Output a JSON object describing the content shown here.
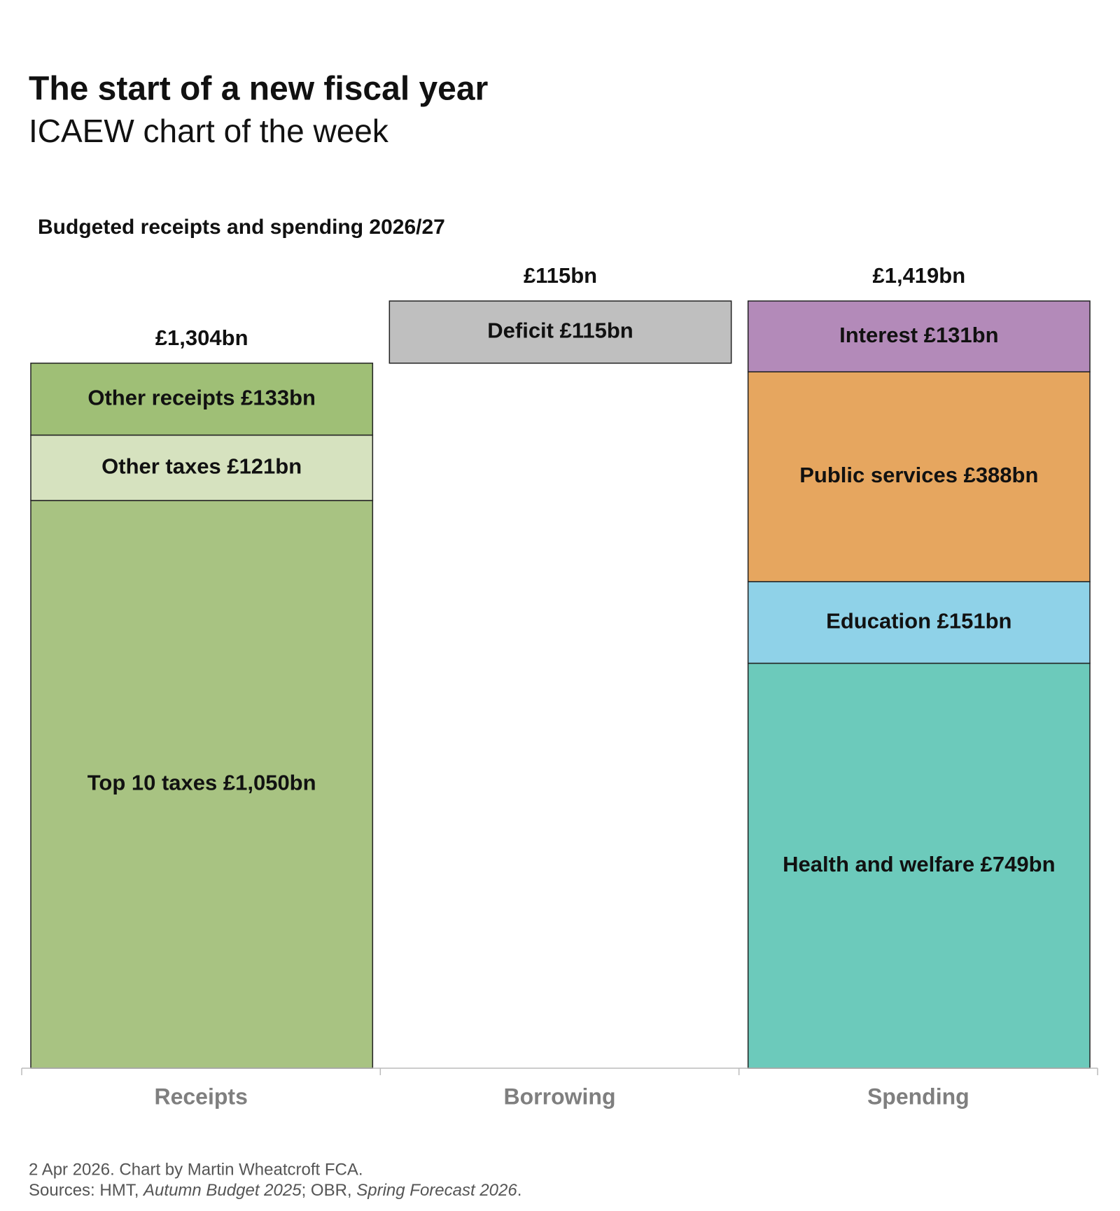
{
  "title": "The start of a new fiscal year",
  "subtitle": "ICAEW chart of the week",
  "chart_data": {
    "type": "waterfall",
    "title": "Budgeted receipts and spending 2026/27",
    "categories": [
      "Receipts",
      "Borrowing",
      "Spending"
    ],
    "stacks": [
      {
        "total": 1304,
        "total_label": "£1,304bn",
        "segments": [
          {
            "label": "Top 10 taxes £1,050bn",
            "value": 1050,
            "color": "#a8c382"
          },
          {
            "label": "Other taxes £121bn",
            "value": 121,
            "color": "#d6e2bf"
          },
          {
            "label": "Other receipts £133bn",
            "value": 133,
            "color": "#9fbf76"
          }
        ]
      },
      {
        "total": 115,
        "total_label": "£115bn",
        "float": true,
        "segments": [
          {
            "label": "Deficit £115bn",
            "value": 115,
            "color": "#bfbfbf"
          }
        ]
      },
      {
        "total": 1419,
        "total_label": "£1,419bn",
        "segments": [
          {
            "label": "Health and welfare £749bn",
            "value": 749,
            "color": "#6ccabb"
          },
          {
            "label": "Education £151bn",
            "value": 151,
            "color": "#8fd2e8"
          },
          {
            "label": "Public services £388bn",
            "value": 388,
            "color": "#e6a65f"
          },
          {
            "label": "Interest £131bn",
            "value": 131,
            "color": "#b38ab9"
          }
        ]
      }
    ]
  },
  "footer": {
    "credit": "2 Apr 2026.   Chart by Martin Wheatcroft FCA.",
    "sources": [
      "Sources: HMT, ",
      "Autumn Budget 2025",
      "; OBR, ",
      "Spring Forecast 2026",
      "."
    ]
  }
}
